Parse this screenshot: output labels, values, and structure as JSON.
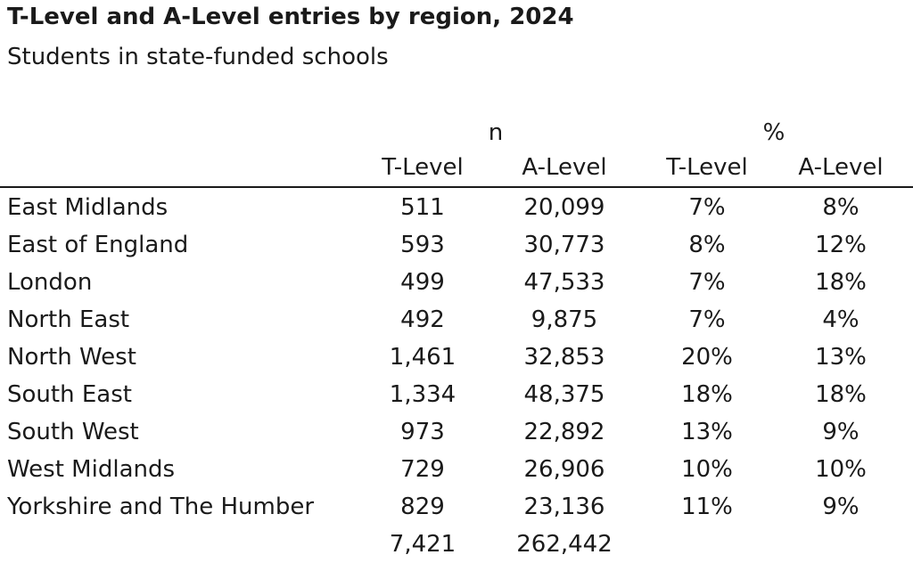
{
  "chart_data": {
    "type": "table",
    "title": "T-Level and A-Level entries by region, 2024",
    "subtitle": "Students in state-funded schools",
    "group_headers": [
      "n",
      "%"
    ],
    "columns": [
      "T-Level",
      "A-Level",
      "T-Level",
      "A-Level"
    ],
    "rows": [
      {
        "region": "East Midlands",
        "n_tlevel": "511",
        "n_alevel": "20,099",
        "pct_tlevel": "7%",
        "pct_alevel": "8%"
      },
      {
        "region": "East of England",
        "n_tlevel": "593",
        "n_alevel": "30,773",
        "pct_tlevel": "8%",
        "pct_alevel": "12%"
      },
      {
        "region": "London",
        "n_tlevel": "499",
        "n_alevel": "47,533",
        "pct_tlevel": "7%",
        "pct_alevel": "18%"
      },
      {
        "region": "North East",
        "n_tlevel": "492",
        "n_alevel": "9,875",
        "pct_tlevel": "7%",
        "pct_alevel": "4%"
      },
      {
        "region": "North West",
        "n_tlevel": "1,461",
        "n_alevel": "32,853",
        "pct_tlevel": "20%",
        "pct_alevel": "13%"
      },
      {
        "region": "South East",
        "n_tlevel": "1,334",
        "n_alevel": "48,375",
        "pct_tlevel": "18%",
        "pct_alevel": "18%"
      },
      {
        "region": "South West",
        "n_tlevel": "973",
        "n_alevel": "22,892",
        "pct_tlevel": "13%",
        "pct_alevel": "9%"
      },
      {
        "region": "West Midlands",
        "n_tlevel": "729",
        "n_alevel": "26,906",
        "pct_tlevel": "10%",
        "pct_alevel": "10%"
      },
      {
        "region": "Yorkshire and The Humber",
        "n_tlevel": "829",
        "n_alevel": "23,136",
        "pct_tlevel": "11%",
        "pct_alevel": "9%"
      }
    ],
    "totals": {
      "n_tlevel": "7,421",
      "n_alevel": "262,442"
    }
  }
}
